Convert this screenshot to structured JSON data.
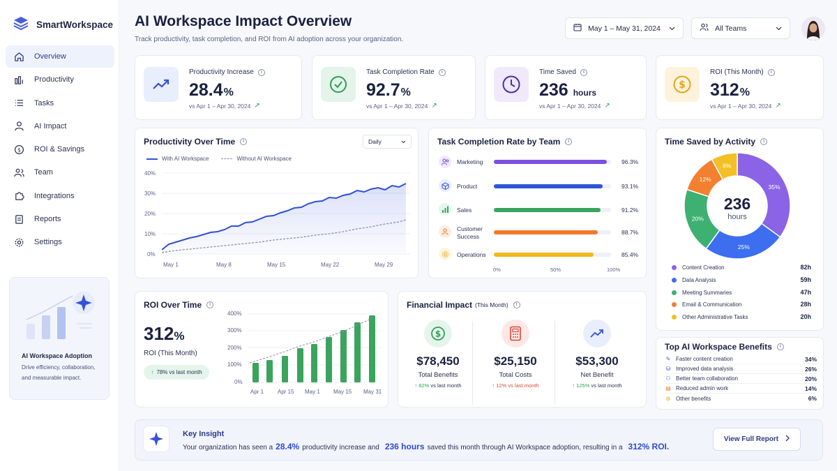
{
  "sidebar": {
    "brand": "SmartWorkspace",
    "items": [
      {
        "label": "Overview"
      },
      {
        "label": "Productivity"
      },
      {
        "label": "Tasks"
      },
      {
        "label": "AI Impact"
      },
      {
        "label": "ROI & Savings"
      },
      {
        "label": "Team"
      },
      {
        "label": "Integrations"
      },
      {
        "label": "Reports"
      },
      {
        "label": "Settings"
      }
    ],
    "promo": {
      "title": "AI Workspace Adoption",
      "desc": "Drive efficiency, collaboration, and measurable impact."
    }
  },
  "header": {
    "title": "AI Workspace Impact Overview",
    "subtitle": "Track productivity, task completion, and ROI from AI adoption across your organization.",
    "date_range": "May 1 – May 31, 2024",
    "team_filter": "All Teams"
  },
  "kpis": [
    {
      "label": "Productivity Increase",
      "value": "28.4",
      "unit": "%",
      "compare": "vs Apr 1 – Apr 30, 2024"
    },
    {
      "label": "Task Completion Rate",
      "value": "92.7",
      "unit": "%",
      "compare": "vs Apr 1 – Apr 30, 2024"
    },
    {
      "label": "Time Saved",
      "value": "236",
      "unit": "hours",
      "compare": "vs Apr 1 – Apr 30, 2024"
    },
    {
      "label": "ROI (This Month)",
      "value": "312",
      "unit": "%",
      "compare": "vs Apr 1 – Apr 30, 2024"
    }
  ],
  "productivity_chart": {
    "title": "Productivity Over Time",
    "granularity": "Daily",
    "legend": [
      "With AI Workspace",
      "Without AI Workspace"
    ],
    "yticks": [
      "40%",
      "30%",
      "20%",
      "10%",
      "0%"
    ],
    "xticks": [
      "May 1",
      "May 8",
      "May 15",
      "May 22",
      "May 29"
    ]
  },
  "team_chart": {
    "title": "Task Completion Rate by Team",
    "teams": [
      {
        "name": "Marketing",
        "pct": "96.3%",
        "value": 96.3,
        "color": "#7b4fe0"
      },
      {
        "name": "Product",
        "pct": "93.1%",
        "value": 93.1,
        "color": "#2f56d8"
      },
      {
        "name": "Sales",
        "pct": "91.2%",
        "value": 91.2,
        "color": "#3aa45c"
      },
      {
        "name": "Customer Success",
        "name_l1": "Customer",
        "name_l2": "Success",
        "pct": "88.7%",
        "value": 88.7,
        "color": "#f07a2c"
      },
      {
        "name": "Operations",
        "pct": "85.4%",
        "value": 85.4,
        "color": "#f2b81f"
      }
    ],
    "xticks": [
      "0%",
      "50%",
      "100%"
    ]
  },
  "time_saved_chart": {
    "title": "Time Saved by Activity",
    "center_value": "236",
    "center_unit": "hours",
    "slices": [
      {
        "name": "Content Creation",
        "pct": 35,
        "label": "35%",
        "hours": "82h",
        "color": "#8a63e6"
      },
      {
        "name": "Data Analysis",
        "pct": 25,
        "label": "25%",
        "hours": "59h",
        "color": "#3d6ef0"
      },
      {
        "name": "Meeting Summaries",
        "pct": 20,
        "label": "20%",
        "hours": "47h",
        "color": "#3db072"
      },
      {
        "name": "Email & Communication",
        "pct": 12,
        "label": "12%",
        "hours": "28h",
        "color": "#f2802f"
      },
      {
        "name": "Other Administrative Tasks",
        "pct": 8,
        "label": "8%",
        "hours": "20h",
        "color": "#f4bf24"
      }
    ]
  },
  "roi_chart": {
    "title": "ROI Over Time",
    "value": "312",
    "unit": "%",
    "caption": "ROI (This Month)",
    "badge": "78% vs last month",
    "yticks": [
      "400%",
      "300%",
      "200%",
      "100%",
      "0%"
    ],
    "xticks": [
      "Apr 1",
      "Apr 15",
      "May 1",
      "May 15",
      "May 31"
    ]
  },
  "financial": {
    "title": "Financial Impact",
    "title_note": "(This Month)",
    "items": [
      {
        "value": "$78,450",
        "label": "Total Benefits",
        "change": "82%",
        "change_note": "vs last month"
      },
      {
        "value": "$25,150",
        "label": "Total Costs",
        "change": "12%",
        "change_note": "vs last month"
      },
      {
        "value": "$53,300",
        "label": "Net Benefit",
        "change": "125%",
        "change_note": "vs last month"
      }
    ]
  },
  "benefits": {
    "title": "Top AI Workspace Benefits",
    "items": [
      {
        "label": "Faster content creation",
        "value": "34%"
      },
      {
        "label": "Improved data analysis",
        "value": "26%"
      },
      {
        "label": "Better team collaboration",
        "value": "20%"
      },
      {
        "label": "Reduced admin work",
        "value": "14%"
      },
      {
        "label": "Other benefits",
        "value": "6%"
      }
    ]
  },
  "insight": {
    "title": "Key Insight",
    "t1": "Your organization has seen a",
    "h1": "28.4%",
    "t2": "productivity increase and",
    "h2": "236 hours",
    "t3": "saved this month through AI Workspace adoption, resulting in a",
    "h3": "312% ROI.",
    "button": "View Full Report"
  }
}
